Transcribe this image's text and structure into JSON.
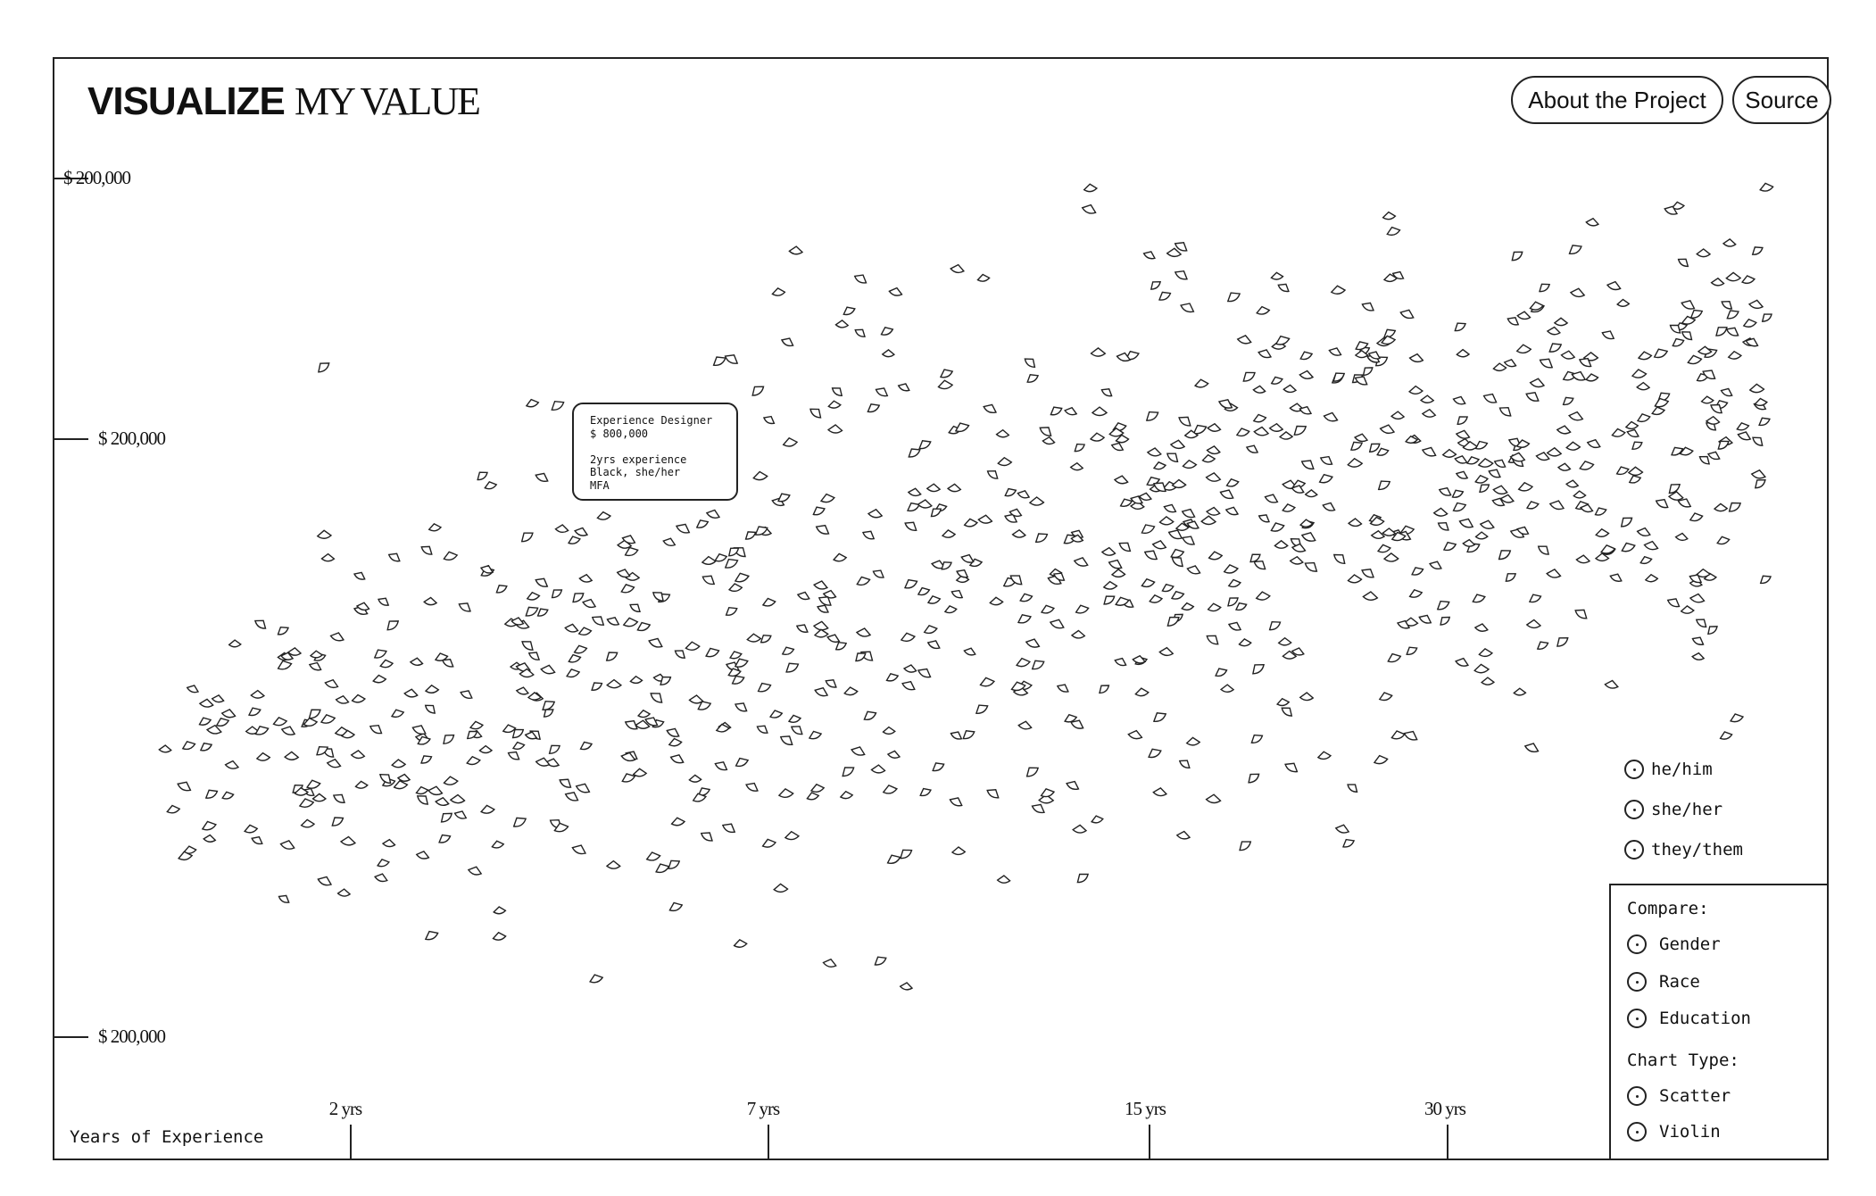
{
  "header": {
    "logo_bold": "VISUALIZE",
    "logo_serif": "MY VALUE",
    "about_label": "About the Project",
    "source_label": "Source"
  },
  "legend": {
    "items": [
      {
        "label": "he/him"
      },
      {
        "label": "she/her"
      },
      {
        "label": "they/them"
      }
    ]
  },
  "controls": {
    "compare_heading": "Compare:",
    "compare_options": [
      {
        "label": "Gender"
      },
      {
        "label": "Race"
      },
      {
        "label": "Education"
      }
    ],
    "chart_type_heading": "Chart Type:",
    "chart_type_options": [
      {
        "label": "Scatter",
        "selected": true
      },
      {
        "label": "Violin",
        "selected": false
      }
    ]
  },
  "tooltip": {
    "lines": [
      "Experience Designer",
      "$ 800,000",
      "",
      "2yrs experience",
      "Black, she/her",
      "MFA"
    ]
  },
  "chart_data": {
    "type": "scatter",
    "title": "",
    "xlabel": "Years of Experience",
    "ylabel": "",
    "x_tick_labels": [
      "2 yrs",
      "7 yrs",
      "15 yrs",
      "30 yrs"
    ],
    "y_tick_labels": [
      "$ 200,000",
      "$ 200,000",
      "$ 200,000"
    ],
    "legend": [
      "he/him",
      "she/her",
      "they/them"
    ],
    "legend_position": "bottom-right",
    "grid": false,
    "point_count": 900,
    "points_note_seed": 20240518
  }
}
